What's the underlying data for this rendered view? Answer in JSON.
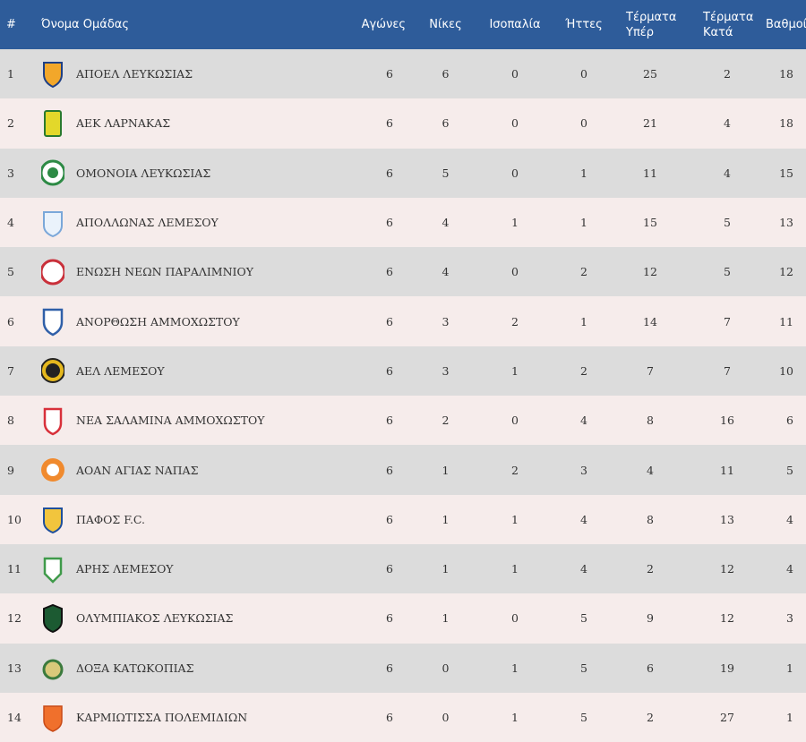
{
  "headers": {
    "pos": "#",
    "team": "Όνομα Ομάδας",
    "played": "Αγώνες",
    "wins": "Νίκες",
    "draws": "Ισοπαλία",
    "losses": "Ήττες",
    "goals_for_1": "Τέρματα",
    "goals_for_2": "Υπέρ",
    "goals_against_1": "Τέρματα",
    "goals_against_2": "Κατά",
    "points": "Βαθμοί"
  },
  "rows": [
    {
      "pos": "1",
      "team": "ΑΠΟΕΛ ΛΕΥΚΩΣΙΑΣ",
      "logo": "apoel-crest-icon",
      "color": "#f2a72a",
      "played": "6",
      "wins": "6",
      "draws": "0",
      "losses": "0",
      "gf": "25",
      "ga": "2",
      "pts": "18"
    },
    {
      "pos": "2",
      "team": "ΑΕΚ ΛΑΡΝΑΚΑΣ",
      "logo": "aek-crest-icon",
      "color": "#e3d82a",
      "played": "6",
      "wins": "6",
      "draws": "0",
      "losses": "0",
      "gf": "21",
      "ga": "4",
      "pts": "18"
    },
    {
      "pos": "3",
      "team": "ΟΜΟΝΟΙΑ ΛΕΥΚΩΣΙΑΣ",
      "logo": "omonoia-crest-icon",
      "color": "#2d8a45",
      "played": "6",
      "wins": "5",
      "draws": "0",
      "losses": "1",
      "gf": "11",
      "ga": "4",
      "pts": "15"
    },
    {
      "pos": "4",
      "team": "ΑΠΟΛΛΩΝΑΣ ΛΕΜΕΣΟΥ",
      "logo": "apollon-crest-icon",
      "color": "#7aa7d9",
      "played": "6",
      "wins": "4",
      "draws": "1",
      "losses": "1",
      "gf": "15",
      "ga": "5",
      "pts": "13"
    },
    {
      "pos": "5",
      "team": "ΕΝΩΣΗ ΝΕΩΝ ΠΑΡΑΛΙΜΝΙΟΥ",
      "logo": "enp-crest-icon",
      "color": "#c9303a",
      "played": "6",
      "wins": "4",
      "draws": "0",
      "losses": "2",
      "gf": "12",
      "ga": "5",
      "pts": "12"
    },
    {
      "pos": "6",
      "team": "ΑΝΟΡΘΩΣΗ ΑΜΜΟΧΩΣΤΟΥ",
      "logo": "anorthosis-crest-icon",
      "color": "#2f5fa8",
      "played": "6",
      "wins": "3",
      "draws": "2",
      "losses": "1",
      "gf": "14",
      "ga": "7",
      "pts": "11"
    },
    {
      "pos": "7",
      "team": "ΑΕΛ ΛΕΜΕΣΟΥ",
      "logo": "ael-crest-icon",
      "color": "#e5b81e",
      "played": "6",
      "wins": "3",
      "draws": "1",
      "losses": "2",
      "gf": "7",
      "ga": "7",
      "pts": "10"
    },
    {
      "pos": "8",
      "team": "ΝΕΑ ΣΑΛΑΜΙΝΑ ΑΜΜΟΧΩΣΤΟΥ",
      "logo": "nea-salamina-crest-icon",
      "color": "#d8303a",
      "played": "6",
      "wins": "2",
      "draws": "0",
      "losses": "4",
      "gf": "8",
      "ga": "16",
      "pts": "6"
    },
    {
      "pos": "9",
      "team": "ΑΟΑΝ ΑΓΙΑΣ ΝΑΠΑΣ",
      "logo": "aoan-crest-icon",
      "color": "#f08a2e",
      "played": "6",
      "wins": "1",
      "draws": "2",
      "losses": "3",
      "gf": "4",
      "ga": "11",
      "pts": "5"
    },
    {
      "pos": "10",
      "team": "ΠΑΦΟΣ F.C.",
      "logo": "pafos-crest-icon",
      "color": "#1f4f9c",
      "played": "6",
      "wins": "1",
      "draws": "1",
      "losses": "4",
      "gf": "8",
      "ga": "13",
      "pts": "4"
    },
    {
      "pos": "11",
      "team": "ΑΡΗΣ ΛΕΜΕΣΟΥ",
      "logo": "aris-crest-icon",
      "color": "#3f9a4a",
      "played": "6",
      "wins": "1",
      "draws": "1",
      "losses": "4",
      "gf": "2",
      "ga": "12",
      "pts": "4"
    },
    {
      "pos": "12",
      "team": "ΟΛΥΜΠΙΑΚΟΣ ΛΕΥΚΩΣΙΑΣ",
      "logo": "olympiakos-crest-icon",
      "color": "#1c5a32",
      "played": "6",
      "wins": "1",
      "draws": "0",
      "losses": "5",
      "gf": "9",
      "ga": "12",
      "pts": "3"
    },
    {
      "pos": "13",
      "team": "ΔΟΞΑ ΚΑΤΩΚΟΠΙΑΣ",
      "logo": "doxa-crest-icon",
      "color": "#3b7a3d",
      "played": "6",
      "wins": "0",
      "draws": "1",
      "losses": "5",
      "gf": "6",
      "ga": "19",
      "pts": "1"
    },
    {
      "pos": "14",
      "team": "ΚΑΡΜΙΩΤΙΣΣΑ ΠΟΛΕΜΙΔΙΩΝ",
      "logo": "karmiotissa-crest-icon",
      "color": "#f0702c",
      "played": "6",
      "wins": "0",
      "draws": "1",
      "losses": "5",
      "gf": "2",
      "ga": "27",
      "pts": "1"
    }
  ]
}
